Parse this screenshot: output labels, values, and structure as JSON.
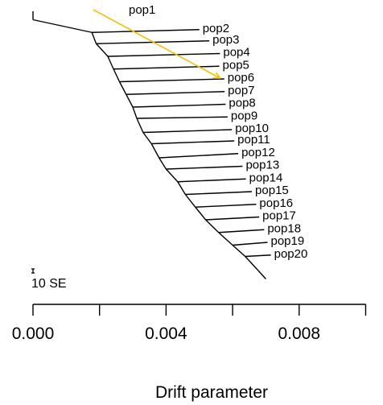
{
  "chart_data": {
    "type": "tree",
    "xlabel": "Drift parameter",
    "x_ticks": [
      "0.000",
      "0.004",
      "0.008"
    ],
    "x_tick_values": [
      0.0,
      0.002,
      0.004,
      0.006,
      0.008,
      0.01
    ],
    "xlim": [
      0.0,
      0.0104
    ],
    "scale_bar_label": "10 SE",
    "root": {
      "drift": 0.0,
      "height": 20.4
    },
    "first_node": {
      "drift": 0.00177,
      "height": 19.5
    },
    "backbone": [
      {
        "drift": 0.00177,
        "height": 19.5
      },
      {
        "drift": 0.0019,
        "height": 18.7
      },
      {
        "drift": 0.00225,
        "height": 17.8
      },
      {
        "drift": 0.00242,
        "height": 16.9
      },
      {
        "drift": 0.0026,
        "height": 16.0
      },
      {
        "drift": 0.0028,
        "height": 15.1
      },
      {
        "drift": 0.003,
        "height": 14.2
      },
      {
        "drift": 0.00312,
        "height": 13.4
      },
      {
        "drift": 0.00331,
        "height": 12.4
      },
      {
        "drift": 0.00356,
        "height": 11.6
      },
      {
        "drift": 0.00379,
        "height": 10.6
      },
      {
        "drift": 0.004,
        "height": 9.8
      },
      {
        "drift": 0.00435,
        "height": 8.9
      },
      {
        "drift": 0.00458,
        "height": 8.0
      },
      {
        "drift": 0.00488,
        "height": 7.1
      },
      {
        "drift": 0.00519,
        "height": 6.2
      },
      {
        "drift": 0.00558,
        "height": 5.3
      },
      {
        "drift": 0.006,
        "height": 4.4
      },
      {
        "drift": 0.00638,
        "height": 3.6
      },
      {
        "drift": 0.00677,
        "height": 2.6
      },
      {
        "drift": 0.007,
        "height": 2.0
      }
    ],
    "leaves": [
      {
        "name": "pop1",
        "drift": 0.0,
        "height": 21.0,
        "parent": 0
      },
      {
        "name": "pop2",
        "drift": 0.005,
        "height": 19.7,
        "parent": 1
      },
      {
        "name": "pop3",
        "drift": 0.0053,
        "height": 18.9,
        "parent": 2
      },
      {
        "name": "pop4",
        "drift": 0.00562,
        "height": 18.0,
        "parent": 3
      },
      {
        "name": "pop5",
        "drift": 0.0056,
        "height": 17.1,
        "parent": 4
      },
      {
        "name": "pop6",
        "drift": 0.00575,
        "height": 16.2,
        "parent": 5
      },
      {
        "name": "pop7",
        "drift": 0.00576,
        "height": 15.3,
        "parent": 6
      },
      {
        "name": "pop8",
        "drift": 0.00579,
        "height": 14.4,
        "parent": 7
      },
      {
        "name": "pop9",
        "drift": 0.00585,
        "height": 13.5,
        "parent": 8
      },
      {
        "name": "pop10",
        "drift": 0.00598,
        "height": 12.6,
        "parent": 9
      },
      {
        "name": "pop11",
        "drift": 0.00605,
        "height": 11.8,
        "parent": 10
      },
      {
        "name": "pop12",
        "drift": 0.00617,
        "height": 10.9,
        "parent": 11
      },
      {
        "name": "pop13",
        "drift": 0.0063,
        "height": 10.0,
        "parent": 12
      },
      {
        "name": "pop14",
        "drift": 0.0064,
        "height": 9.1,
        "parent": 13
      },
      {
        "name": "pop15",
        "drift": 0.00658,
        "height": 8.2,
        "parent": 14
      },
      {
        "name": "pop16",
        "drift": 0.00671,
        "height": 7.3,
        "parent": 15
      },
      {
        "name": "pop17",
        "drift": 0.0068,
        "height": 6.4,
        "parent": 16
      },
      {
        "name": "pop18",
        "drift": 0.00695,
        "height": 5.5,
        "parent": 17
      },
      {
        "name": "pop19",
        "drift": 0.00705,
        "height": 4.6,
        "parent": 18
      },
      {
        "name": "pop20",
        "drift": 0.00715,
        "height": 3.7,
        "parent": 19
      }
    ],
    "migration_edge": {
      "color": "#f2c200",
      "from": {
        "drift": 0.0,
        "height": 21.0
      },
      "to": {
        "drift": 0.005,
        "height": 17.1
      }
    }
  }
}
